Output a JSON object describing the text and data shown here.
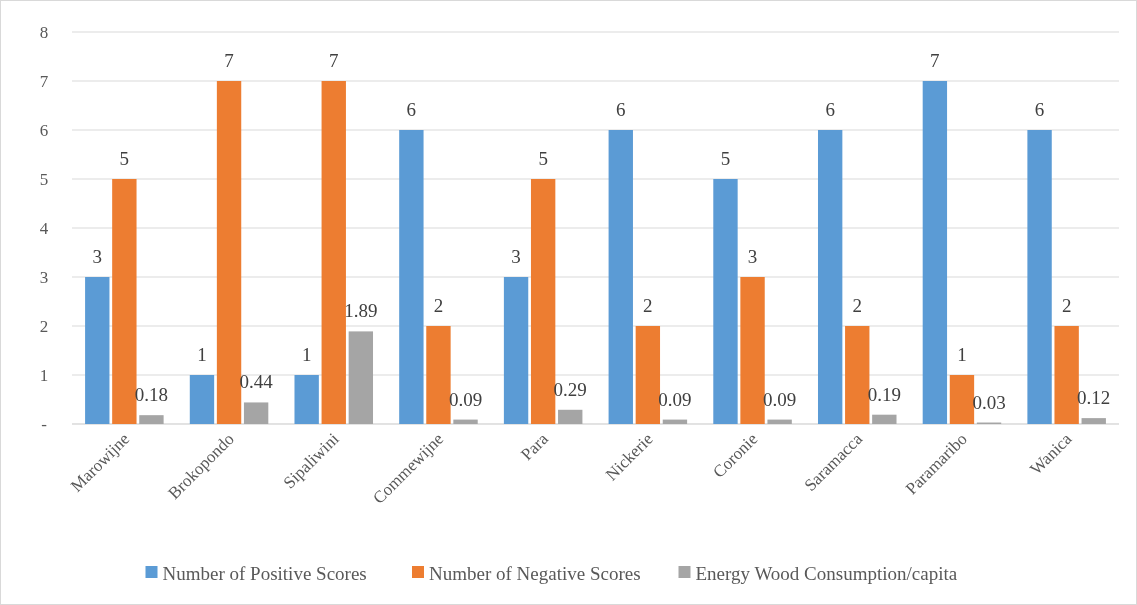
{
  "chart_data": {
    "type": "bar",
    "categories": [
      "Marowijne",
      "Brokopondo",
      "Sipaliwini",
      "Commewijne",
      "Para",
      "Nickerie",
      "Coronie",
      "Saramacca",
      "Paramaribo",
      "Wanica"
    ],
    "series": [
      {
        "name": "Number of Positive Scores",
        "color": "#5b9bd5",
        "values": [
          3,
          1,
          1,
          6,
          3,
          6,
          5,
          6,
          7,
          6
        ]
      },
      {
        "name": "Number of Negative Scores",
        "color": "#ed7d31",
        "values": [
          5,
          7,
          7,
          2,
          5,
          2,
          3,
          2,
          1,
          2
        ]
      },
      {
        "name": "Energy Wood Consumption/capita",
        "color": "#a5a5a5",
        "values": [
          0.18,
          0.44,
          1.89,
          0.09,
          0.29,
          0.09,
          0.09,
          0.19,
          0.03,
          0.12
        ]
      }
    ],
    "ylim": [
      0,
      8
    ],
    "yticks": [
      {
        "value": 0,
        "label": "-"
      },
      1,
      2,
      3,
      4,
      5,
      6,
      7,
      8
    ],
    "grid": "y",
    "data_labels": true,
    "legend": "bottom"
  }
}
